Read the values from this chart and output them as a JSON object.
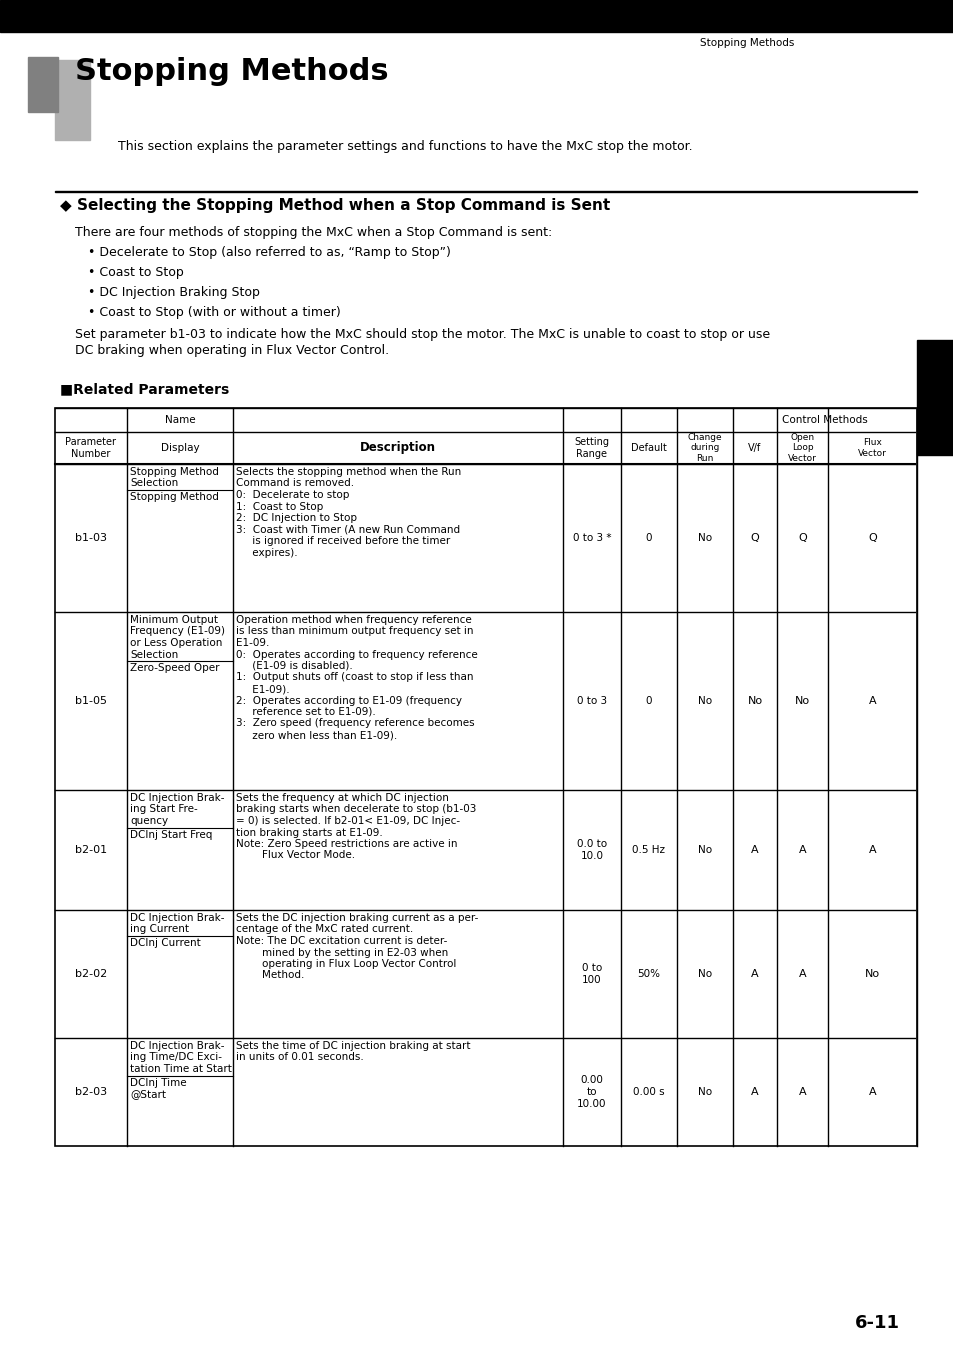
{
  "page_title": "Stopping Methods",
  "page_number": "6-11",
  "chapter_number": "6",
  "title": "Stopping Methods",
  "subtitle": "This section explains the parameter settings and functions to have the MxC stop the motor.",
  "section_title": "◆ Selecting the Stopping Method when a Stop Command is Sent",
  "section_intro": "There are four methods of stopping the MxC when a Stop Command is sent:",
  "bullets": [
    "Decelerate to Stop (also referred to as, “Ramp to Stop”)",
    "Coast to Stop",
    "DC Injection Braking Stop",
    "Coast to Stop (with or without a timer)"
  ],
  "note_text": "Set parameter b1-03 to indicate how the MxC should stop the motor. The MxC is unable to coast to stop or use DC braking when operating in Flux Vector Control.",
  "related_params_title": "■Related Parameters",
  "rows": [
    {
      "param": "b1-03",
      "name_top": [
        "Stopping Method",
        "Selection"
      ],
      "name_bottom": [
        "Stopping Method"
      ],
      "description": [
        "Selects the stopping method when the Run",
        "Command is removed.",
        "0:  Decelerate to stop",
        "1:  Coast to Stop",
        "2:  DC Injection to Stop",
        "3:  Coast with Timer (A new Run Command",
        "     is ignored if received before the timer",
        "     expires)."
      ],
      "range": "0 to 3 *",
      "default": "0",
      "change": "No",
      "vf": "Q",
      "olv": "Q",
      "fv": "Q"
    },
    {
      "param": "b1-05",
      "name_top": [
        "Minimum Output",
        "Frequency (E1-09)",
        "or Less Operation",
        "Selection"
      ],
      "name_bottom": [
        "Zero-Speed Oper"
      ],
      "description": [
        "Operation method when frequency reference",
        "is less than minimum output frequency set in",
        "E1-09.",
        "0:  Operates according to frequency reference",
        "     (E1-09 is disabled).",
        "1:  Output shuts off (coast to stop if less than",
        "     E1-09).",
        "2:  Operates according to E1-09 (frequency",
        "     reference set to E1-09).",
        "3:  Zero speed (frequency reference becomes",
        "     zero when less than E1-09)."
      ],
      "range": "0 to 3",
      "default": "0",
      "change": "No",
      "vf": "No",
      "olv": "No",
      "fv": "A"
    },
    {
      "param": "b2-01",
      "name_top": [
        "DC Injection Brak-",
        "ing Start Fre-",
        "quency"
      ],
      "name_bottom": [
        "DCInj Start Freq"
      ],
      "description": [
        "Sets the frequency at which DC injection",
        "braking starts when decelerate to stop (b1-03",
        "= 0) is selected. If b2-01< E1-09, DC Injec-",
        "tion braking starts at E1-09.",
        "Note: Zero Speed restrictions are active in",
        "        Flux Vector Mode."
      ],
      "range": "0.0 to\n10.0",
      "default": "0.5 Hz",
      "change": "No",
      "vf": "A",
      "olv": "A",
      "fv": "A"
    },
    {
      "param": "b2-02",
      "name_top": [
        "DC Injection Brak-",
        "ing Current"
      ],
      "name_bottom": [
        "DCInj Current"
      ],
      "description": [
        "Sets the DC injection braking current as a per-",
        "centage of the MxC rated current.",
        "Note: The DC excitation current is deter-",
        "        mined by the setting in E2-03 when",
        "        operating in Flux Loop Vector Control",
        "        Method."
      ],
      "range": "0 to\n100",
      "default": "50%",
      "change": "No",
      "vf": "A",
      "olv": "A",
      "fv": "No"
    },
    {
      "param": "b2-03",
      "name_top": [
        "DC Injection Brak-",
        "ing Time/DC Exci-",
        "tation Time at Start"
      ],
      "name_bottom": [
        "DCInj Time",
        "@Start"
      ],
      "description": [
        "Sets the time of DC injection braking at start",
        "in units of 0.01 seconds."
      ],
      "range": "0.00\nto\n10.00",
      "default": "0.00 s",
      "change": "No",
      "vf": "A",
      "olv": "A",
      "fv": "A"
    }
  ]
}
